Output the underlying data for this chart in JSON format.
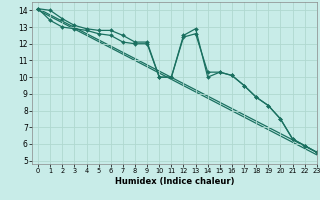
{
  "xlabel": "Humidex (Indice chaleur)",
  "background_color": "#c8ece8",
  "grid_color": "#b0d8d0",
  "line_color": "#1a7060",
  "xlim": [
    -0.5,
    23
  ],
  "ylim": [
    4.8,
    14.5
  ],
  "yticks": [
    5,
    6,
    7,
    8,
    9,
    10,
    11,
    12,
    13,
    14
  ],
  "xticks": [
    0,
    1,
    2,
    3,
    4,
    5,
    6,
    7,
    8,
    9,
    10,
    11,
    12,
    13,
    14,
    15,
    16,
    17,
    18,
    19,
    20,
    21,
    22,
    23
  ],
  "line1_x": [
    0,
    1,
    2,
    3,
    4,
    5,
    6,
    7,
    8,
    9,
    10,
    11,
    12,
    13,
    14,
    15,
    16,
    17,
    18,
    19,
    20,
    21,
    22,
    23
  ],
  "line1_y": [
    14.1,
    14.0,
    13.5,
    13.1,
    12.9,
    12.8,
    12.8,
    12.5,
    12.1,
    12.1,
    10.0,
    10.0,
    12.5,
    12.9,
    10.0,
    10.3,
    10.1,
    9.5,
    8.8,
    8.3,
    7.5,
    6.3,
    5.9,
    5.5
  ],
  "line2_x": [
    0,
    1,
    2,
    3,
    4,
    5,
    6,
    7,
    8,
    9,
    10,
    11,
    12,
    13,
    14,
    15,
    16,
    17,
    18,
    19,
    20,
    21,
    22,
    23
  ],
  "line2_y": [
    14.1,
    13.4,
    13.0,
    12.9,
    12.8,
    12.6,
    12.5,
    12.1,
    12.0,
    12.0,
    10.0,
    10.0,
    12.4,
    12.6,
    10.3,
    10.3,
    10.1,
    9.5,
    8.8,
    8.3,
    7.5,
    6.3,
    5.9,
    5.5
  ],
  "line3_x": [
    0,
    23
  ],
  "line3_y": [
    14.1,
    5.5
  ],
  "line4_x": [
    0,
    23
  ],
  "line4_y": [
    14.1,
    5.5
  ]
}
